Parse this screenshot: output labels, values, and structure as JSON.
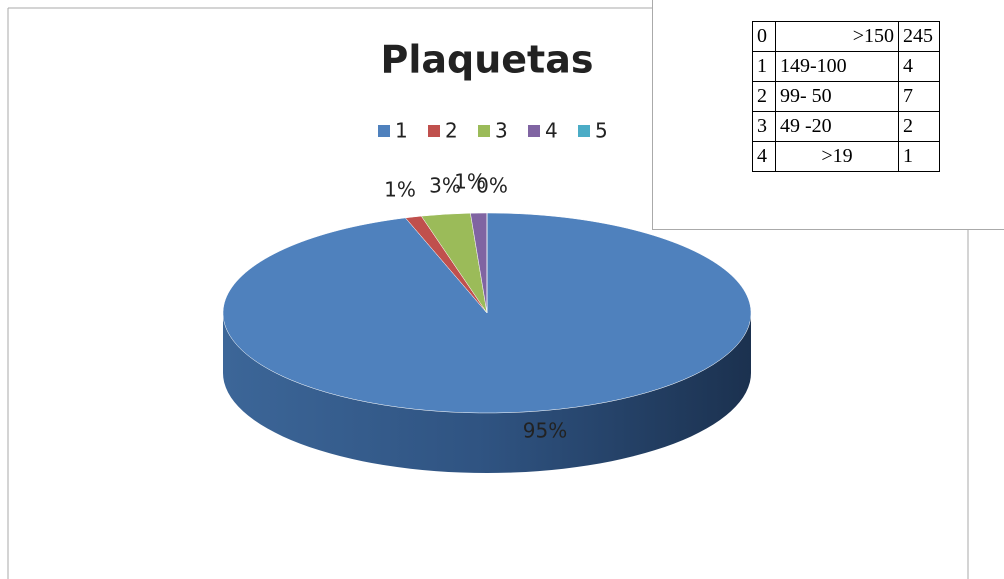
{
  "chart_data": {
    "type": "pie",
    "title": "Plaquetas",
    "categories": [
      "1",
      "2",
      "3",
      "4",
      "5"
    ],
    "values": [
      95,
      1,
      3,
      1,
      0
    ],
    "value_labels": [
      "95%",
      "1%",
      "3%",
      "1%",
      "0%"
    ],
    "colors": [
      "#4f81bd",
      "#c0504d",
      "#9bbb59",
      "#8064a2",
      "#4bacc6"
    ],
    "legend": "top"
  },
  "table": {
    "rows": [
      [
        "0",
        ">150",
        "245"
      ],
      [
        "1",
        "149-100",
        "4"
      ],
      [
        "2",
        "99- 50",
        "7"
      ],
      [
        "3",
        "49 -20",
        "2"
      ],
      [
        "4",
        ">19",
        "1"
      ]
    ]
  }
}
